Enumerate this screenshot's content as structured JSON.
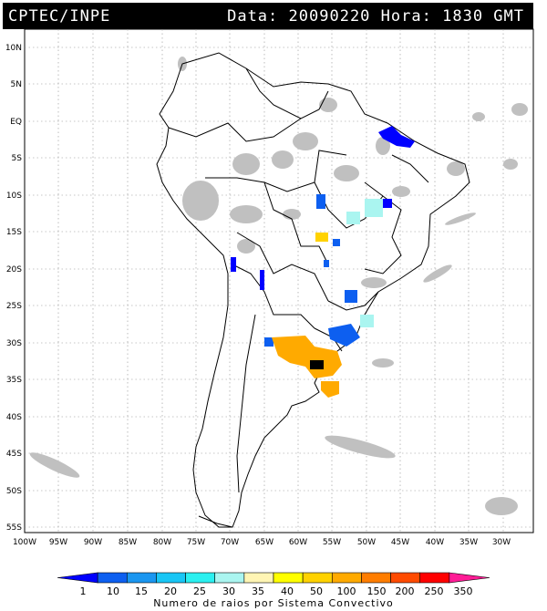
{
  "header": {
    "source": "CPTEC/INPE",
    "date_label": "Data:",
    "date": "20090220",
    "time_label": "Hora:",
    "time": "1830 GMT"
  },
  "map": {
    "lat_labels": [
      "10N",
      "5N",
      "EQ",
      "5S",
      "10S",
      "15S",
      "20S",
      "25S",
      "30S",
      "35S",
      "40S",
      "45S",
      "50S",
      "55S"
    ],
    "lon_labels": [
      "100W",
      "95W",
      "90W",
      "85W",
      "80W",
      "75W",
      "70W",
      "65W",
      "60W",
      "55W",
      "50W",
      "45W",
      "40W",
      "35W",
      "30W"
    ],
    "colors": {
      "land_outline": "#000000",
      "clouds": "#c0c0c0",
      "grid": "#909090"
    }
  },
  "legend": {
    "title": "Numero de raios por Sistema Convectivo",
    "ticks": [
      "1",
      "10",
      "15",
      "20",
      "25",
      "30",
      "35",
      "40",
      "50",
      "100",
      "150",
      "200",
      "250",
      "350"
    ],
    "colors": [
      "#0000ff",
      "#0d5ff0",
      "#1a96f0",
      "#19c6f5",
      "#2bf0f0",
      "#aaf5f0",
      "#fff5b4",
      "#ffff00",
      "#ffd200",
      "#ffaa00",
      "#ff7d00",
      "#ff4b00",
      "#ff0000",
      "#ff1c96"
    ]
  }
}
